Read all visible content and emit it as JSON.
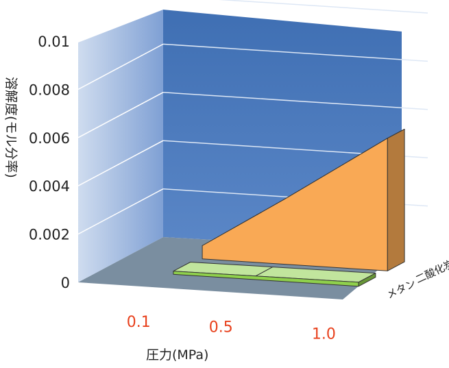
{
  "chart_data": {
    "type": "area",
    "style": "3d",
    "title": "",
    "xlabel": "圧力(MPa)",
    "ylabel": "溶解度(モル分率)",
    "x": [
      0.1,
      0.5,
      1.0
    ],
    "x_tick_labels": [
      "0.1",
      "0.5",
      "1.0"
    ],
    "x_tick_color": "#e8401c",
    "y_tick_labels": [
      "0",
      "0.002",
      "0.004",
      "0.006",
      "0.008",
      "0.01"
    ],
    "ylim": [
      0,
      0.01
    ],
    "grid": true,
    "series": [
      {
        "name": "二酸化炭素",
        "values": [
          0.00055,
          0.0027,
          0.0055
        ],
        "color": "#f9a955"
      },
      {
        "name": "メタン",
        "values": [
          0.00013,
          0.00015,
          0.00017
        ],
        "color": "#8fd04c"
      }
    ]
  }
}
